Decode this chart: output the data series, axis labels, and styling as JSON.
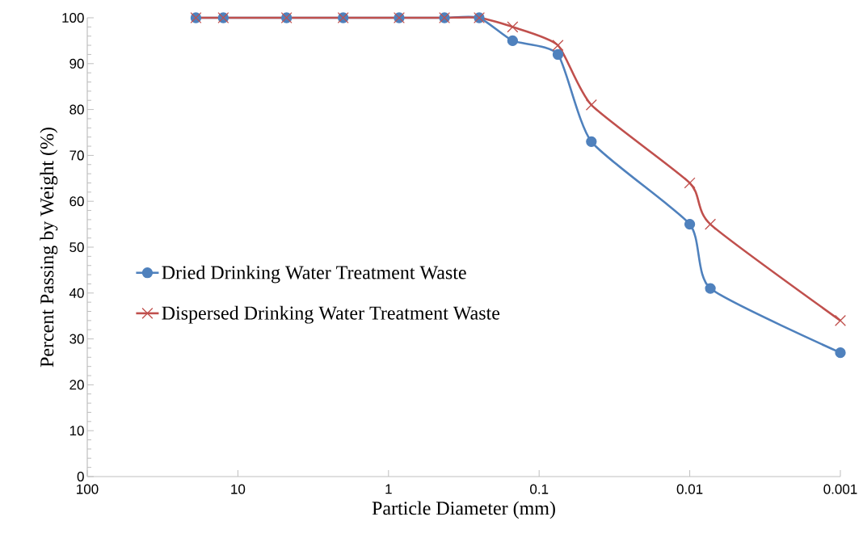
{
  "chart_data": {
    "type": "line",
    "xlabel": "Particle Diameter (mm)",
    "ylabel": "Percent Passing by Weight (%)",
    "log": "x",
    "xlim": [
      100,
      0.001
    ],
    "xticks": [
      100,
      10,
      1,
      0.1,
      0.01,
      0.001
    ],
    "ylim": [
      0,
      100
    ],
    "yticks": [
      0,
      10,
      20,
      30,
      40,
      50,
      60,
      70,
      80,
      90,
      100
    ],
    "grid": false,
    "legend": "left",
    "line_style": "solid",
    "series": [
      {
        "name": "Dried Drinking Water Treatment Waste",
        "color": "#4f81bd",
        "marker": "circle",
        "x": [
          19,
          12.5,
          4.75,
          2,
          0.85,
          0.425,
          0.25,
          0.15,
          0.075,
          0.045,
          0.01,
          0.0073,
          0.001
        ],
        "values": [
          100,
          100,
          100,
          100,
          100,
          100,
          100,
          95,
          92,
          73,
          55,
          41,
          27
        ]
      },
      {
        "name": "Dispersed Drinking Water Treatment Waste",
        "color": "#c0504d",
        "marker": "cross",
        "x": [
          19,
          12.5,
          4.75,
          2,
          0.85,
          0.425,
          0.25,
          0.15,
          0.075,
          0.045,
          0.01,
          0.0073,
          0.001
        ],
        "values": [
          100,
          100,
          100,
          100,
          100,
          100,
          100,
          98,
          94,
          81,
          64,
          55,
          34
        ]
      }
    ]
  }
}
